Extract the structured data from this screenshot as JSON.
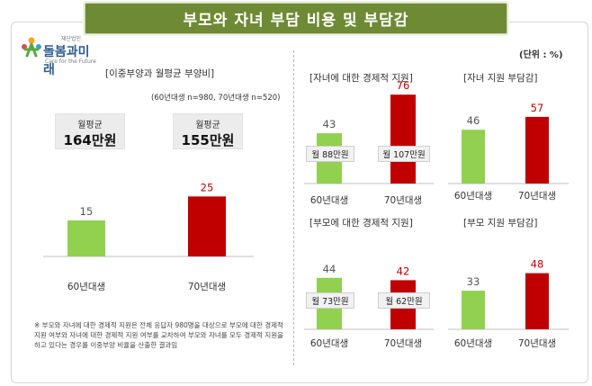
{
  "title": "부모와 자녀 부담 비용 및 부담감",
  "logo": {
    "org_small": "재단법인",
    "name": "돌봄과미래",
    "sub": "Care for the Future"
  },
  "unit_label": "(단위 : %)",
  "left_panel": {
    "title": "[이중부양과 월평균 부양비]",
    "sample_note": "(60년대생 n=980, 70년대생 n=520)",
    "avg_boxes": [
      {
        "label": "월평균",
        "amount": "164만원"
      },
      {
        "label": "월평균",
        "amount": "155만원"
      }
    ],
    "footnote": "※ 부모와 자녀에 대한 경제적 지원은 전체 응답자 980명을 대상으로 부모에 대한 경제적 지원 여부와 자녀에 대한 경제적 지원 여부를 교차하여 부모와 자녀를 모두 경제적 지원을 하고 있다는 경우를 이중부양 비율을 산출한 결과임"
  },
  "colors": {
    "green": "#92d050",
    "red": "#c00000",
    "label_green": "#555555",
    "label_red": "#c00000"
  },
  "chart_data": [
    {
      "type": "bar",
      "title": "[이중부양과 월평균 부양비]",
      "categories": [
        "60년대생",
        "70년대생"
      ],
      "values": [
        15,
        25
      ],
      "ylim": [
        0,
        60
      ]
    },
    {
      "type": "bar",
      "title": "[자녀에 대한 경제적 지원]",
      "categories": [
        "60년대생",
        "70년대생"
      ],
      "values": [
        43,
        76
      ],
      "monthly": [
        "월 88만원",
        "월 107만원"
      ],
      "ylim": [
        0,
        100
      ]
    },
    {
      "type": "bar",
      "title": "[자녀 지원 부담감]",
      "categories": [
        "60년대생",
        "70년대생"
      ],
      "values": [
        46,
        57
      ],
      "ylim": [
        0,
        100
      ]
    },
    {
      "type": "bar",
      "title": "[부모에 대한 경제적 지원]",
      "categories": [
        "60년대생",
        "70년대생"
      ],
      "values": [
        44,
        42
      ],
      "monthly": [
        "월 73만원",
        "월 62만원"
      ],
      "ylim": [
        0,
        100
      ]
    },
    {
      "type": "bar",
      "title": "[부모 지원 부담감]",
      "categories": [
        "60년대생",
        "70년대생"
      ],
      "values": [
        33,
        48
      ],
      "ylim": [
        0,
        100
      ]
    }
  ]
}
